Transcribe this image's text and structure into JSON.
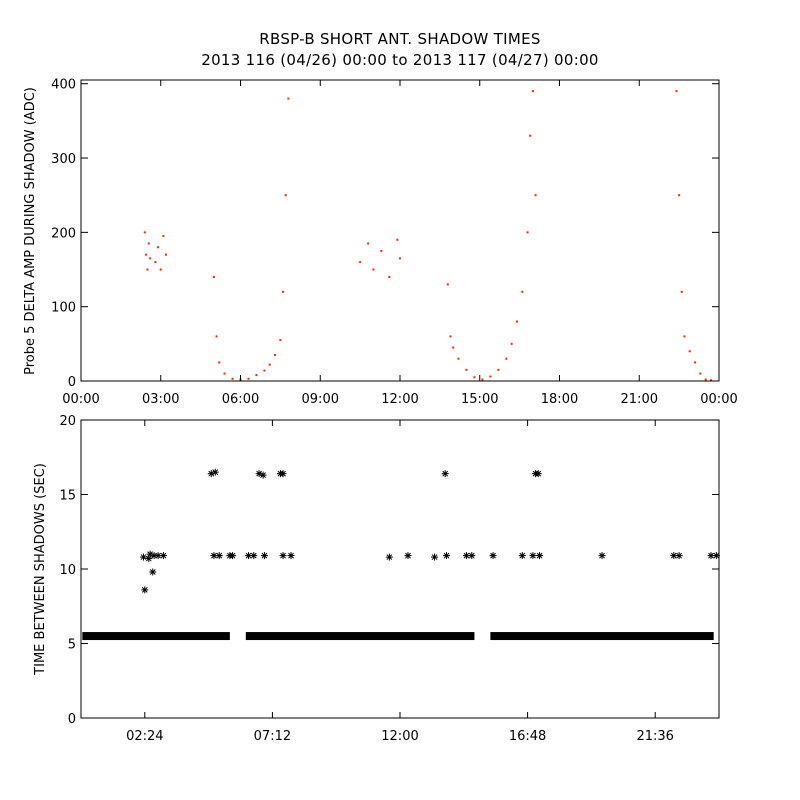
{
  "title": {
    "line1": "RBSP-B SHORT ANT. SHADOW TIMES",
    "line2": "2013 116 (04/26) 00:00 to 2013 117 (04/27) 00:00"
  },
  "colors": {
    "upper_points": "#ff2200",
    "lower_points": "#000000",
    "axes": "#000000"
  },
  "chart_data": [
    {
      "type": "scatter",
      "ylabel": "Probe 5 DELTA AMP DURING SHADOW (ADC)",
      "xlabel": "",
      "xlim_hours": [
        0,
        24
      ],
      "ylim": [
        0,
        405
      ],
      "x_tick_labels": [
        "00:00",
        "03:00",
        "06:00",
        "09:00",
        "12:00",
        "15:00",
        "18:00",
        "21:00",
        "00:00"
      ],
      "x_tick_hours": [
        0,
        3,
        6,
        9,
        12,
        15,
        18,
        21,
        24
      ],
      "y_ticks": [
        0,
        100,
        200,
        300,
        400
      ],
      "series": [
        {
          "points": [
            [
              2.4,
              200
            ],
            [
              2.45,
              170
            ],
            [
              2.5,
              150
            ],
            [
              2.55,
              185
            ],
            [
              2.6,
              165
            ],
            [
              2.8,
              160
            ],
            [
              2.9,
              180
            ],
            [
              3.0,
              150
            ],
            [
              3.1,
              195
            ],
            [
              3.2,
              170
            ],
            [
              5.0,
              140
            ],
            [
              5.1,
              60
            ],
            [
              5.2,
              25
            ],
            [
              5.4,
              10
            ],
            [
              5.7,
              3
            ],
            [
              6.0,
              2
            ],
            [
              6.3,
              3
            ],
            [
              6.6,
              8
            ],
            [
              6.9,
              14
            ],
            [
              7.1,
              22
            ],
            [
              7.3,
              35
            ],
            [
              7.5,
              55
            ],
            [
              7.6,
              120
            ],
            [
              7.7,
              250
            ],
            [
              7.8,
              380
            ],
            [
              10.5,
              160
            ],
            [
              10.8,
              185
            ],
            [
              11.0,
              150
            ],
            [
              11.3,
              175
            ],
            [
              11.6,
              140
            ],
            [
              11.9,
              190
            ],
            [
              12.0,
              165
            ],
            [
              13.8,
              130
            ],
            [
              13.9,
              60
            ],
            [
              14.0,
              45
            ],
            [
              14.2,
              30
            ],
            [
              14.5,
              15
            ],
            [
              14.8,
              5
            ],
            [
              15.1,
              2
            ],
            [
              15.4,
              6
            ],
            [
              15.7,
              15
            ],
            [
              16.0,
              30
            ],
            [
              16.2,
              50
            ],
            [
              16.4,
              80
            ],
            [
              16.6,
              120
            ],
            [
              16.8,
              200
            ],
            [
              16.9,
              330
            ],
            [
              17.0,
              390
            ],
            [
              17.1,
              250
            ],
            [
              22.4,
              390
            ],
            [
              22.5,
              250
            ],
            [
              22.6,
              120
            ],
            [
              22.7,
              60
            ],
            [
              22.9,
              40
            ],
            [
              23.1,
              25
            ],
            [
              23.3,
              10
            ],
            [
              23.5,
              2
            ],
            [
              23.7,
              1
            ]
          ]
        }
      ]
    },
    {
      "type": "scatter",
      "ylabel": "TIME BETWEEN SHADOWS (SEC)",
      "xlabel": "",
      "xlim_hours": [
        0,
        24
      ],
      "ylim": [
        0,
        20
      ],
      "x_tick_labels": [
        "02:24",
        "07:12",
        "12:00",
        "16:48",
        "21:36"
      ],
      "x_tick_hours": [
        2.4,
        7.2,
        12.0,
        16.8,
        21.6
      ],
      "y_ticks": [
        0,
        5,
        10,
        15,
        20
      ],
      "series": [
        {
          "baseline_value": 5.5,
          "baseline_segments_hours": [
            [
              0.05,
              5.6
            ],
            [
              6.2,
              14.8
            ],
            [
              15.4,
              23.8
            ]
          ],
          "points": [
            [
              2.35,
              10.8
            ],
            [
              2.4,
              8.6
            ],
            [
              2.55,
              10.7
            ],
            [
              2.6,
              11.0
            ],
            [
              2.7,
              9.8
            ],
            [
              2.75,
              10.9
            ],
            [
              2.9,
              10.9
            ],
            [
              3.1,
              10.9
            ],
            [
              4.9,
              16.4
            ],
            [
              5.05,
              16.5
            ],
            [
              5.0,
              10.9
            ],
            [
              5.2,
              10.9
            ],
            [
              5.6,
              10.9
            ],
            [
              5.7,
              10.9
            ],
            [
              6.3,
              10.9
            ],
            [
              6.5,
              10.9
            ],
            [
              6.7,
              16.4
            ],
            [
              6.85,
              16.3
            ],
            [
              6.9,
              10.9
            ],
            [
              7.5,
              16.4
            ],
            [
              7.6,
              16.4
            ],
            [
              7.6,
              10.9
            ],
            [
              7.9,
              10.9
            ],
            [
              11.6,
              10.8
            ],
            [
              12.3,
              10.9
            ],
            [
              13.3,
              10.8
            ],
            [
              13.7,
              16.4
            ],
            [
              13.75,
              10.9
            ],
            [
              14.5,
              10.9
            ],
            [
              14.7,
              10.9
            ],
            [
              15.5,
              10.9
            ],
            [
              16.6,
              10.9
            ],
            [
              17.0,
              10.9
            ],
            [
              17.1,
              16.4
            ],
            [
              17.2,
              16.4
            ],
            [
              17.25,
              10.9
            ],
            [
              19.6,
              10.9
            ],
            [
              22.3,
              10.9
            ],
            [
              22.5,
              10.9
            ],
            [
              23.7,
              10.9
            ],
            [
              23.9,
              10.9
            ]
          ]
        }
      ]
    }
  ]
}
